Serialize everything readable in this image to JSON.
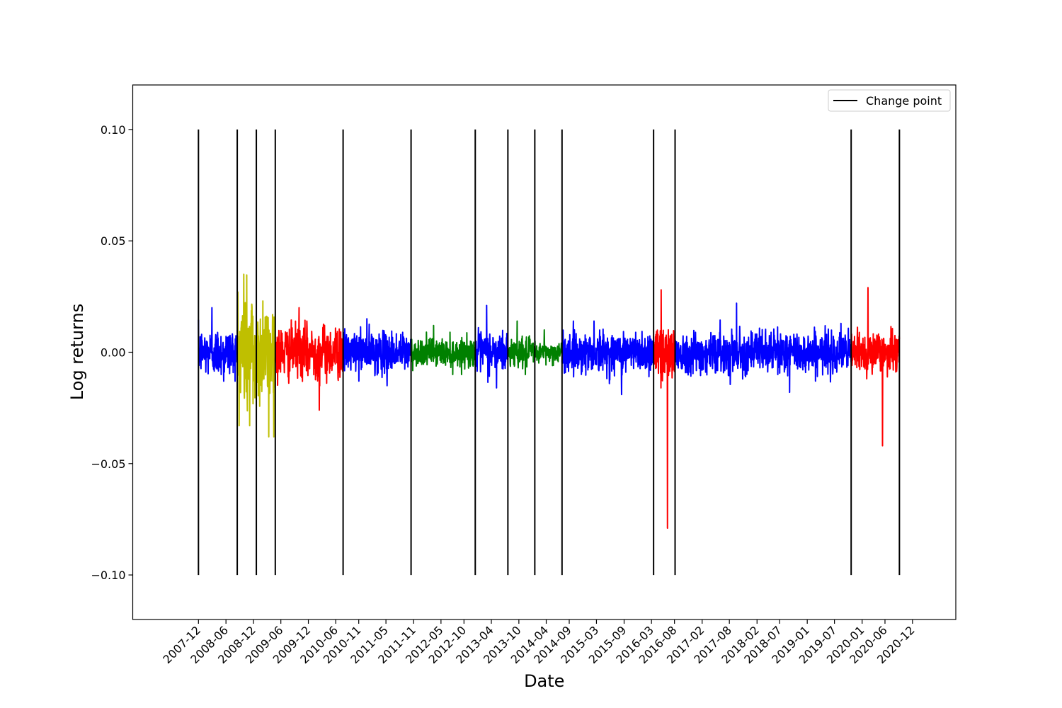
{
  "chart_data": {
    "type": "line",
    "title": "",
    "xlabel": "Date",
    "ylabel": "Log returns",
    "ylim": [
      -0.12,
      0.12
    ],
    "y_ticks": [
      -0.1,
      -0.05,
      0.0,
      0.05,
      0.1
    ],
    "y_tick_labels": [
      "−0.10",
      "−0.05",
      "0.00",
      "0.05",
      "0.10"
    ],
    "x_range": [
      "2006-09-20",
      "2021-09-15"
    ],
    "x_ticks": [
      "2007-12",
      "2008-06",
      "2008-12",
      "2009-06",
      "2009-12",
      "2010-06",
      "2010-11",
      "2011-05",
      "2011-11",
      "2012-05",
      "2012-10",
      "2013-04",
      "2013-10",
      "2014-04",
      "2014-09",
      "2015-03",
      "2015-09",
      "2016-03",
      "2016-08",
      "2017-02",
      "2017-08",
      "2018-02",
      "2018-07",
      "2019-01",
      "2019-07",
      "2020-01",
      "2020-06",
      "2020-12"
    ],
    "grid": false,
    "legend": {
      "placement": "upper right",
      "entries": [
        "Change point"
      ]
    },
    "change_points": {
      "name": "Change point",
      "color": "#000000",
      "ymin": -0.1,
      "ymax": 0.1,
      "dates": [
        "2007-12-01",
        "2008-08-15",
        "2008-12-20",
        "2009-04-25",
        "2010-07-20",
        "2011-10-15",
        "2012-12-15",
        "2013-07-20",
        "2014-01-15",
        "2014-07-15",
        "2016-03-15",
        "2016-08-05",
        "2019-10-20",
        "2020-09-05"
      ]
    },
    "segments": [
      {
        "start": "2007-12-01",
        "end": "2008-08-15",
        "color": "#0000ff",
        "typical_abs": 0.007,
        "max": 0.02,
        "min": -0.013
      },
      {
        "start": "2008-08-15",
        "end": "2008-12-20",
        "color": "#bfbf00",
        "typical_abs": 0.02,
        "max": 0.035,
        "min": -0.033
      },
      {
        "start": "2008-12-20",
        "end": "2009-04-25",
        "color": "#bfbf00",
        "typical_abs": 0.015,
        "max": 0.023,
        "min": -0.038
      },
      {
        "start": "2009-04-25",
        "end": "2010-07-20",
        "color": "#ff0000",
        "typical_abs": 0.008,
        "max": 0.02,
        "min": -0.026
      },
      {
        "start": "2010-07-20",
        "end": "2011-10-15",
        "color": "#0000ff",
        "typical_abs": 0.006,
        "max": 0.015,
        "min": -0.015
      },
      {
        "start": "2011-10-15",
        "end": "2012-12-15",
        "color": "#008000",
        "typical_abs": 0.004,
        "max": 0.012,
        "min": -0.01
      },
      {
        "start": "2012-12-15",
        "end": "2013-07-20",
        "color": "#0000ff",
        "typical_abs": 0.006,
        "max": 0.021,
        "min": -0.016
      },
      {
        "start": "2013-07-20",
        "end": "2014-01-15",
        "color": "#008000",
        "typical_abs": 0.004,
        "max": 0.014,
        "min": -0.01
      },
      {
        "start": "2014-01-15",
        "end": "2014-07-15",
        "color": "#008000",
        "typical_abs": 0.003,
        "max": 0.01,
        "min": -0.006
      },
      {
        "start": "2014-07-15",
        "end": "2016-03-15",
        "color": "#0000ff",
        "typical_abs": 0.006,
        "max": 0.014,
        "min": -0.019
      },
      {
        "start": "2016-03-15",
        "end": "2016-08-05",
        "color": "#ff0000",
        "typical_abs": 0.008,
        "max": 0.028,
        "min": -0.079
      },
      {
        "start": "2016-08-05",
        "end": "2019-10-20",
        "color": "#0000ff",
        "typical_abs": 0.006,
        "max": 0.022,
        "min": -0.018
      },
      {
        "start": "2019-10-20",
        "end": "2020-09-05",
        "color": "#ff0000",
        "typical_abs": 0.006,
        "max": 0.029,
        "min": -0.042
      }
    ]
  }
}
